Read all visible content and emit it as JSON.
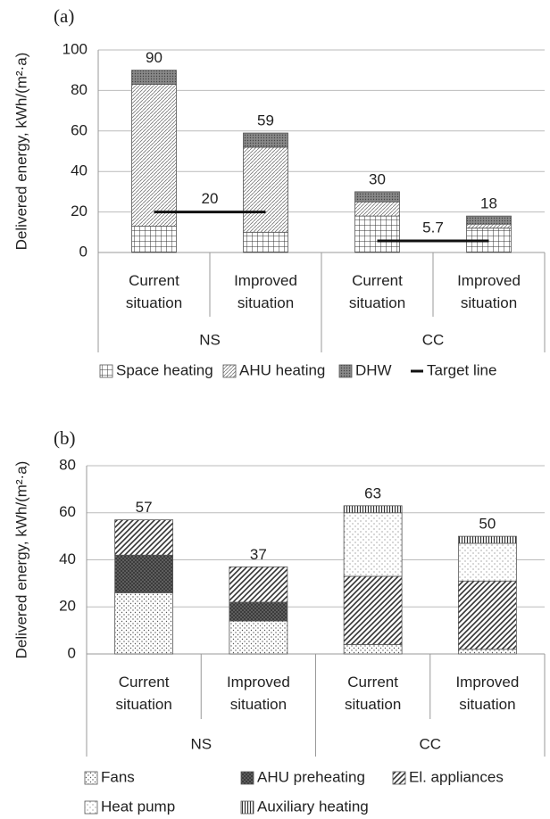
{
  "chart_data": [
    {
      "type": "bar",
      "stacked": true,
      "panel_label": "(a)",
      "ylabel": "Delivered energy, kWh/(m²·a)",
      "categories": [
        "Current situation",
        "Improved situation",
        "Current situation",
        "Improved situation"
      ],
      "groups": [
        {
          "name": "NS",
          "target": 20
        },
        {
          "name": "CC",
          "target": 5.7
        }
      ],
      "target_label": "Target line",
      "series": [
        {
          "name": "Space heating",
          "values": [
            13,
            10,
            18,
            12
          ]
        },
        {
          "name": "AHU heating",
          "values": [
            70,
            42,
            7,
            2
          ]
        },
        {
          "name": "DHW",
          "values": [
            7,
            7,
            5,
            4
          ]
        }
      ],
      "totals": [
        90,
        59,
        30,
        18
      ],
      "ylim": [
        0,
        100
      ],
      "yticks": [
        0,
        20,
        40,
        60,
        80,
        100
      ],
      "grid": true
    },
    {
      "type": "bar",
      "stacked": true,
      "panel_label": "(b)",
      "ylabel": "Delivered energy, kWh/(m²·a)",
      "categories": [
        "Current situation",
        "Improved situation",
        "Current situation",
        "Improved situation"
      ],
      "groups": [
        {
          "name": "NS"
        },
        {
          "name": "CC"
        }
      ],
      "series": [
        {
          "name": "Fans",
          "values": [
            26,
            14,
            4,
            2
          ]
        },
        {
          "name": "AHU preheating",
          "values": [
            16,
            8,
            0,
            0
          ]
        },
        {
          "name": "El. appliances",
          "values": [
            15,
            15,
            29,
            29
          ]
        },
        {
          "name": "Heat pump",
          "values": [
            0,
            0,
            27,
            16
          ]
        },
        {
          "name": "Auxiliary heating",
          "values": [
            0,
            0,
            3,
            3
          ]
        }
      ],
      "totals": [
        57,
        37,
        63,
        50
      ],
      "ylim": [
        0,
        80
      ],
      "yticks": [
        0,
        20,
        40,
        60,
        80
      ],
      "grid": true
    }
  ]
}
